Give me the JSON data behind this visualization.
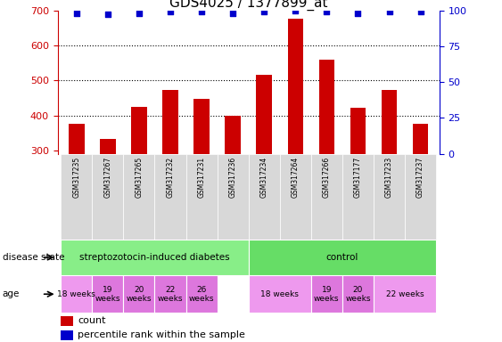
{
  "title": "GDS4025 / 1377899_at",
  "samples": [
    "GSM317235",
    "GSM317267",
    "GSM317265",
    "GSM317232",
    "GSM317231",
    "GSM317236",
    "GSM317234",
    "GSM317264",
    "GSM317266",
    "GSM317177",
    "GSM317233",
    "GSM317237"
  ],
  "counts": [
    375,
    332,
    425,
    472,
    447,
    398,
    515,
    675,
    560,
    422,
    472,
    375
  ],
  "percentile": [
    98,
    97,
    98,
    99,
    99,
    98,
    99,
    100,
    99,
    98,
    99,
    99
  ],
  "ylim_left": [
    290,
    700
  ],
  "ylim_right": [
    0,
    100
  ],
  "yticks_left": [
    300,
    400,
    500,
    600,
    700
  ],
  "yticks_right": [
    0,
    25,
    50,
    75,
    100
  ],
  "bar_color": "#cc0000",
  "dot_color": "#0000cc",
  "bar_width": 0.5,
  "disease_state_groups": [
    {
      "label": "streptozotocin-induced diabetes",
      "start": 0,
      "end": 6,
      "color": "#88ee88"
    },
    {
      "label": "control",
      "start": 6,
      "end": 12,
      "color": "#66dd66"
    }
  ],
  "age_groups": [
    {
      "label": "18 weeks",
      "start": 0,
      "end": 1,
      "color": "#ee99ee",
      "multiline": false
    },
    {
      "label": "19\nweeks",
      "start": 1,
      "end": 2,
      "color": "#dd77dd",
      "multiline": true
    },
    {
      "label": "20\nweeks",
      "start": 2,
      "end": 3,
      "color": "#dd77dd",
      "multiline": true
    },
    {
      "label": "22\nweeks",
      "start": 3,
      "end": 4,
      "color": "#dd77dd",
      "multiline": true
    },
    {
      "label": "26\nweeks",
      "start": 4,
      "end": 5,
      "color": "#dd77dd",
      "multiline": true
    },
    {
      "label": "18 weeks",
      "start": 6,
      "end": 8,
      "color": "#ee99ee",
      "multiline": false
    },
    {
      "label": "19\nweeks",
      "start": 8,
      "end": 9,
      "color": "#dd77dd",
      "multiline": true
    },
    {
      "label": "20\nweeks",
      "start": 9,
      "end": 10,
      "color": "#dd77dd",
      "multiline": true
    },
    {
      "label": "22 weeks",
      "start": 10,
      "end": 12,
      "color": "#ee99ee",
      "multiline": false
    }
  ],
  "tick_color_left": "#cc0000",
  "tick_color_right": "#0000cc",
  "bg_color": "#ffffff",
  "sample_box_color": "#d8d8d8",
  "title_fontsize": 11
}
